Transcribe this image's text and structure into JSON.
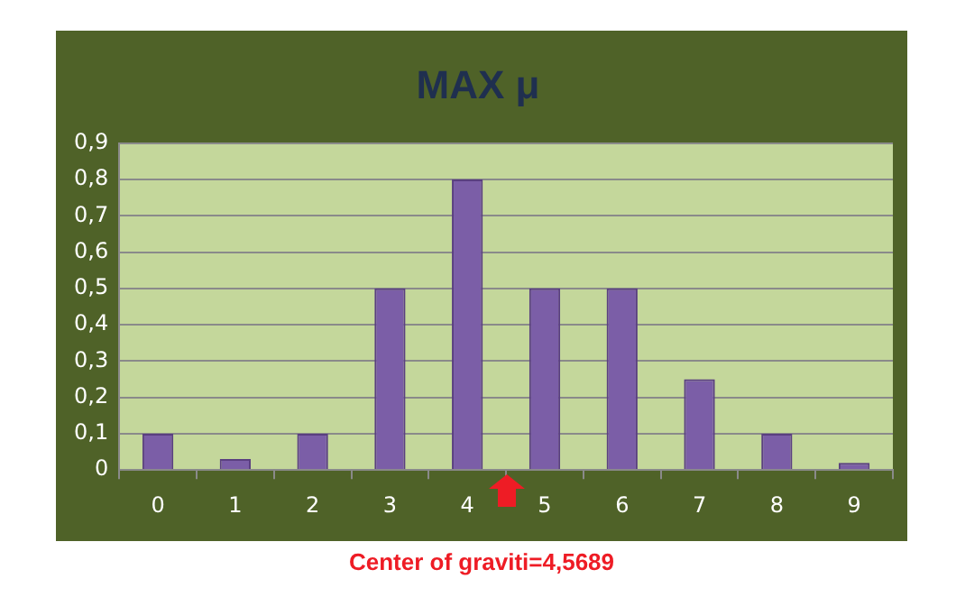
{
  "chart_data": {
    "type": "bar",
    "title": "MAX μ",
    "categories": [
      "0",
      "1",
      "2",
      "3",
      "4",
      "5",
      "6",
      "7",
      "8",
      "9"
    ],
    "values": [
      0.1,
      0.03,
      0.1,
      0.5,
      0.8,
      0.5,
      0.5,
      0.25,
      0.1,
      0.02
    ],
    "color": "#7b5ea7",
    "ylim": [
      0,
      0.9
    ],
    "yticks": [
      0,
      {
        "value": 0.1,
        "label": "0,1"
      },
      {
        "value": 0.2,
        "label": "0,2"
      },
      {
        "value": 0.3,
        "label": "0,3"
      },
      {
        "value": 0.4,
        "label": "0,4"
      },
      {
        "value": 0.5,
        "label": "0,5"
      },
      {
        "value": 0.6,
        "label": "0,6"
      },
      {
        "value": 0.7,
        "label": "0,7"
      },
      {
        "value": 0.8,
        "label": "0,8"
      },
      {
        "value": 0.9,
        "label": "0,9"
      }
    ],
    "grid": "y",
    "legend": false,
    "annotations": [
      "Center of graviti=4,5689"
    ]
  }
}
